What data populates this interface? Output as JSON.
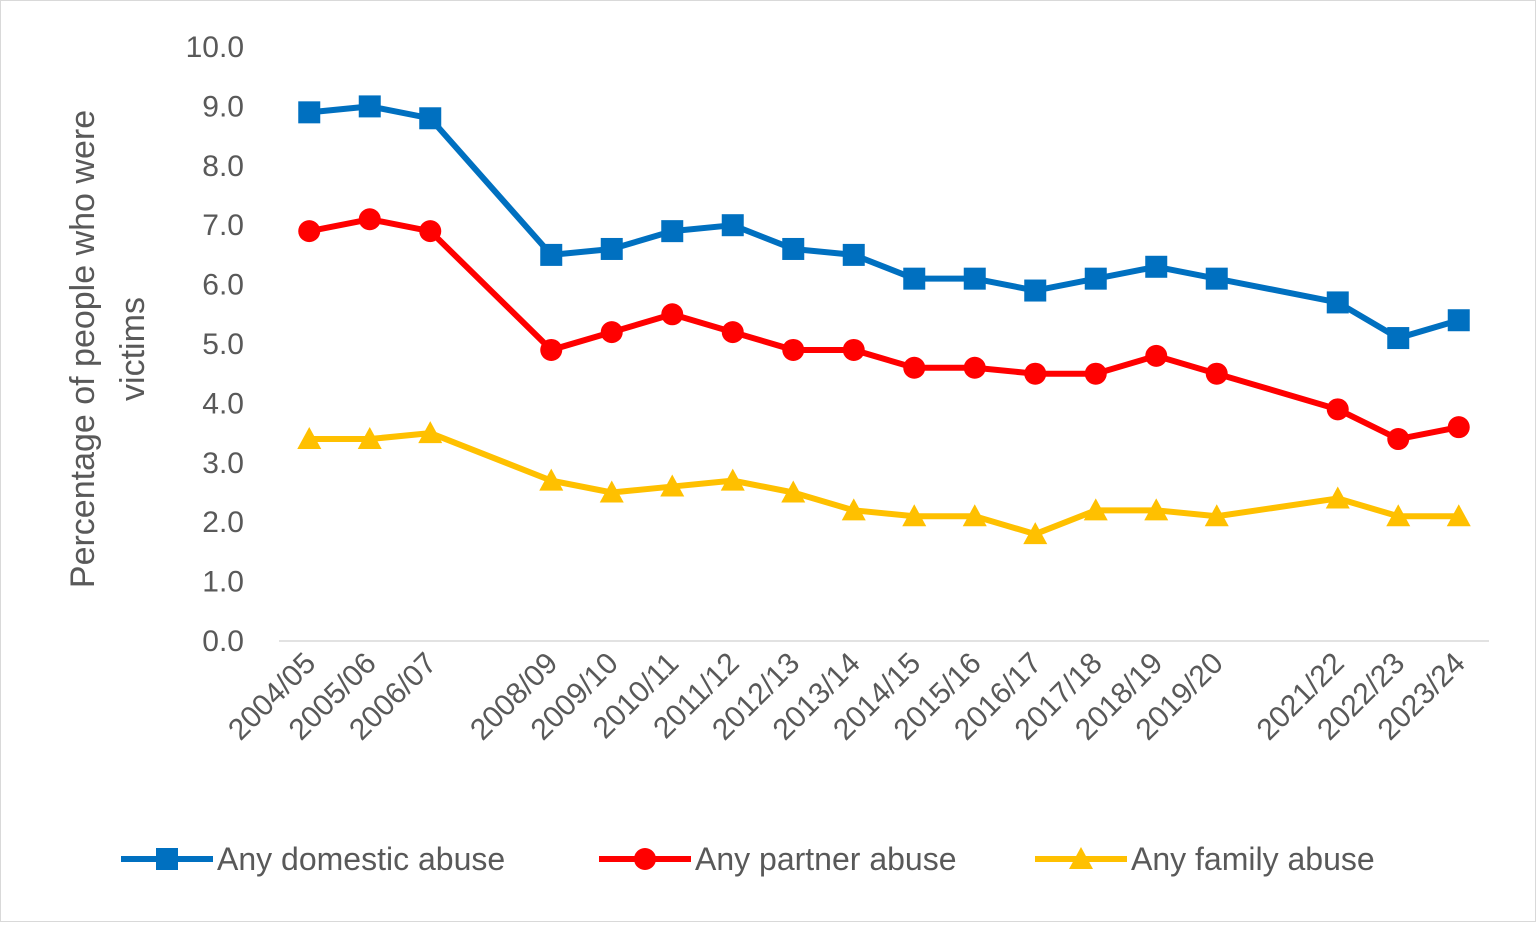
{
  "chart_data": {
    "type": "line",
    "title": "",
    "xlabel": "",
    "ylabel": "Percentage of people who were victims",
    "ylim": [
      0,
      10
    ],
    "yticks": [
      "0.0",
      "1.0",
      "2.0",
      "3.0",
      "4.0",
      "5.0",
      "6.0",
      "7.0",
      "8.0",
      "9.0",
      "10.0"
    ],
    "grid": false,
    "legend_position": "bottom",
    "categories": [
      "2004/05",
      "2005/06",
      "2006/07",
      "",
      "2008/09",
      "2009/10",
      "2010/11",
      "2011/12",
      "2012/13",
      "2013/14",
      "2014/15",
      "2015/16",
      "2016/17",
      "2017/18",
      "2018/19",
      "2019/20",
      "",
      "2021/22",
      "2022/23",
      "2023/24"
    ],
    "series": [
      {
        "name": "Any domestic abuse",
        "color": "#0070C0",
        "marker": "square",
        "values": [
          8.9,
          9.0,
          8.8,
          null,
          6.5,
          6.6,
          6.9,
          7.0,
          6.6,
          6.5,
          6.1,
          6.1,
          5.9,
          6.1,
          6.3,
          6.1,
          null,
          5.7,
          5.1,
          5.4
        ]
      },
      {
        "name": "Any partner abuse",
        "color": "#FF0000",
        "marker": "circle",
        "values": [
          6.9,
          7.1,
          6.9,
          null,
          4.9,
          5.2,
          5.5,
          5.2,
          4.9,
          4.9,
          4.6,
          4.6,
          4.5,
          4.5,
          4.8,
          4.5,
          null,
          3.9,
          3.4,
          3.6
        ]
      },
      {
        "name": "Any family abuse",
        "color": "#FFC000",
        "marker": "triangle",
        "values": [
          3.4,
          3.4,
          3.5,
          null,
          2.7,
          2.5,
          2.6,
          2.7,
          2.5,
          2.2,
          2.1,
          2.1,
          1.8,
          2.2,
          2.2,
          2.1,
          null,
          2.4,
          2.1,
          2.1
        ]
      }
    ]
  }
}
